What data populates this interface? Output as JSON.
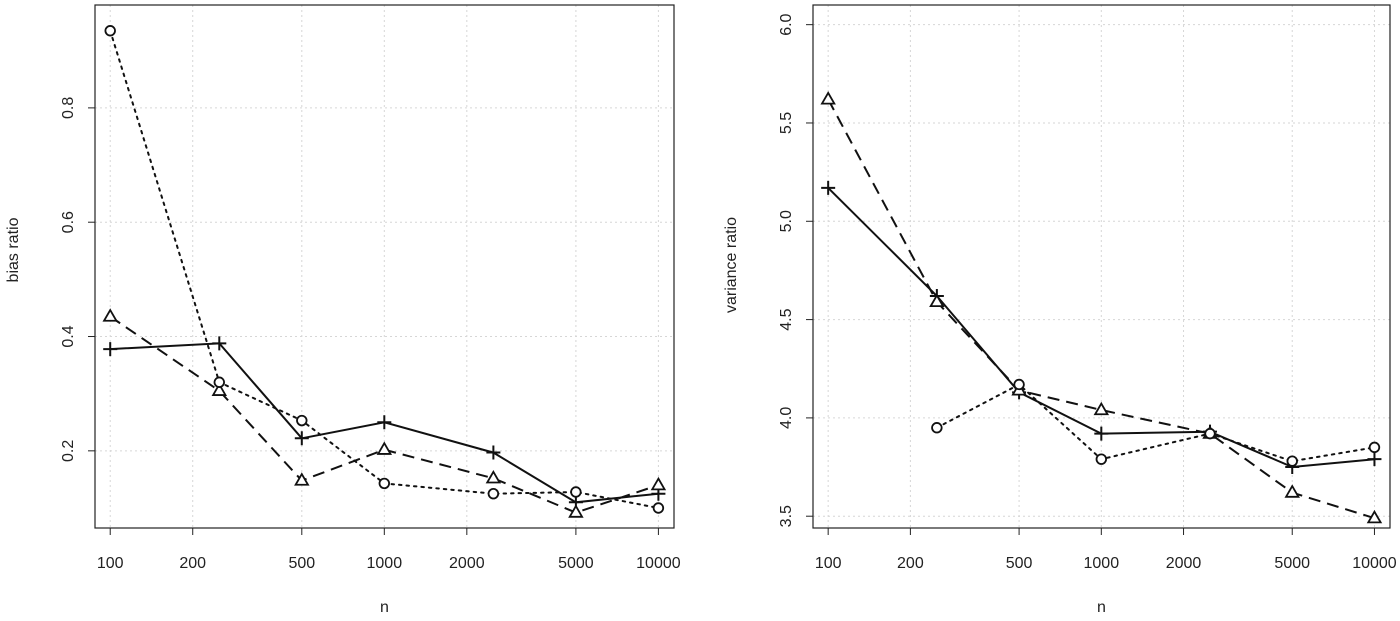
{
  "chart_data": [
    {
      "type": "line",
      "title": "",
      "xlabel": "n",
      "ylabel": "bias ratio",
      "x_scale": "log",
      "x": [
        100,
        250,
        500,
        1000,
        2500,
        5000,
        10000
      ],
      "x_ticks": [
        "100",
        "200",
        "500",
        "1000",
        "2000",
        "5000",
        "10000"
      ],
      "y_ticks": [
        "0.2",
        "0.4",
        "0.6",
        "0.8"
      ],
      "xlim": [
        88,
        11400
      ],
      "ylim": [
        0.065,
        0.98
      ],
      "grid": true,
      "series": [
        {
          "line_style": "solid",
          "marker": "plus",
          "values": [
            0.378,
            0.388,
            0.222,
            0.25,
            0.197,
            0.11,
            0.125
          ]
        },
        {
          "line_style": "dashed",
          "marker": "triangle",
          "values": [
            0.435,
            0.305,
            0.148,
            0.202,
            0.152,
            0.092,
            0.14
          ]
        },
        {
          "line_style": "dotted",
          "marker": "circle",
          "values": [
            0.935,
            0.32,
            0.253,
            0.143,
            0.125,
            0.128,
            0.1
          ]
        }
      ]
    },
    {
      "type": "line",
      "title": "",
      "xlabel": "n",
      "ylabel": "variance ratio",
      "x_scale": "log",
      "x": [
        100,
        250,
        500,
        1000,
        2500,
        5000,
        10000
      ],
      "x_ticks": [
        "100",
        "200",
        "500",
        "1000",
        "2000",
        "5000",
        "10000"
      ],
      "y_ticks": [
        "3.5",
        "4.0",
        "4.5",
        "5.0",
        "5.5",
        "6.0"
      ],
      "xlim": [
        88,
        11400
      ],
      "ylim": [
        3.44,
        6.1
      ],
      "grid": true,
      "series": [
        {
          "line_style": "solid",
          "marker": "plus",
          "values": [
            5.17,
            4.62,
            4.13,
            3.92,
            3.93,
            3.75,
            3.79
          ]
        },
        {
          "line_style": "dashed",
          "marker": "triangle",
          "values": [
            5.62,
            4.59,
            4.14,
            4.04,
            3.92,
            3.62,
            3.49
          ]
        },
        {
          "line_style": "dotted",
          "marker": "circle",
          "values": [
            null,
            3.95,
            4.17,
            3.79,
            3.92,
            3.78,
            3.85
          ]
        }
      ]
    }
  ]
}
